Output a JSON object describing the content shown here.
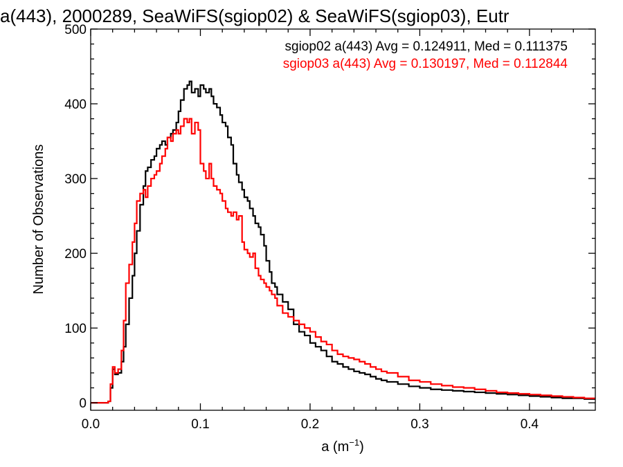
{
  "chart_data": {
    "type": "line",
    "title": "a(443), 2000289, SeaWiFS(sgiop02) & SeaWiFS(sgiop03), Eutr",
    "xlabel_base": "a (m",
    "xlabel_sup": "−1",
    "xlabel_end": ")",
    "ylabel": "Number of Observations",
    "xlim": [
      0.0,
      0.46
    ],
    "ylim": [
      -10,
      500
    ],
    "xticks": [
      "0.0",
      "0.1",
      "0.2",
      "0.3",
      "0.4"
    ],
    "yticks": [
      "0",
      "100",
      "200",
      "300",
      "400",
      "500"
    ],
    "grid": false,
    "legend_placement": "top-right",
    "x": [
      0.0,
      0.01,
      0.016,
      0.018,
      0.02,
      0.022,
      0.025,
      0.028,
      0.03,
      0.032,
      0.035,
      0.038,
      0.04,
      0.042,
      0.045,
      0.048,
      0.05,
      0.052,
      0.055,
      0.058,
      0.06,
      0.063,
      0.065,
      0.068,
      0.07,
      0.073,
      0.075,
      0.078,
      0.08,
      0.082,
      0.085,
      0.088,
      0.09,
      0.092,
      0.095,
      0.098,
      0.1,
      0.103,
      0.105,
      0.108,
      0.11,
      0.112,
      0.115,
      0.118,
      0.12,
      0.123,
      0.125,
      0.128,
      0.13,
      0.133,
      0.135,
      0.138,
      0.14,
      0.143,
      0.145,
      0.148,
      0.15,
      0.153,
      0.155,
      0.158,
      0.16,
      0.163,
      0.165,
      0.168,
      0.17,
      0.175,
      0.18,
      0.185,
      0.19,
      0.195,
      0.2,
      0.205,
      0.21,
      0.215,
      0.22,
      0.225,
      0.23,
      0.235,
      0.24,
      0.245,
      0.25,
      0.255,
      0.26,
      0.265,
      0.27,
      0.28,
      0.29,
      0.3,
      0.31,
      0.32,
      0.33,
      0.34,
      0.35,
      0.36,
      0.37,
      0.38,
      0.39,
      0.4,
      0.41,
      0.42,
      0.43,
      0.44,
      0.45,
      0.46
    ],
    "series": [
      {
        "name": "sgiop02 a(443) Avg = 0.124911, Med = 0.111375",
        "color": "#000000",
        "values": [
          0,
          0,
          2,
          20,
          45,
          38,
          40,
          55,
          75,
          105,
          140,
          170,
          200,
          230,
          265,
          290,
          310,
          315,
          325,
          330,
          340,
          345,
          350,
          345,
          355,
          360,
          365,
          375,
          390,
          405,
          420,
          425,
          430,
          415,
          420,
          410,
          425,
          420,
          415,
          420,
          410,
          400,
          395,
          385,
          375,
          370,
          355,
          345,
          320,
          305,
          295,
          285,
          275,
          270,
          260,
          250,
          240,
          235,
          225,
          210,
          190,
          175,
          160,
          155,
          145,
          135,
          125,
          105,
          95,
          90,
          80,
          75,
          70,
          62,
          55,
          52,
          48,
          45,
          42,
          40,
          38,
          35,
          32,
          30,
          28,
          25,
          22,
          20,
          18,
          17,
          16,
          15,
          14,
          13,
          12,
          11,
          10,
          9,
          8,
          7,
          6,
          6,
          5,
          5
        ]
      },
      {
        "name": "sgiop03 a(443) Avg = 0.130197, Med = 0.112844",
        "color": "#ff0000",
        "values": [
          0,
          0,
          2,
          25,
          48,
          40,
          45,
          70,
          110,
          160,
          185,
          215,
          240,
          270,
          280,
          285,
          275,
          290,
          300,
          305,
          310,
          320,
          330,
          340,
          355,
          350,
          360,
          365,
          360,
          370,
          380,
          375,
          380,
          360,
          375,
          365,
          320,
          310,
          300,
          320,
          300,
          290,
          285,
          280,
          270,
          260,
          255,
          250,
          255,
          245,
          250,
          215,
          205,
          200,
          195,
          200,
          180,
          170,
          165,
          160,
          155,
          150,
          145,
          140,
          130,
          120,
          115,
          110,
          105,
          100,
          95,
          88,
          82,
          78,
          70,
          65,
          62,
          60,
          58,
          55,
          52,
          48,
          45,
          42,
          40,
          35,
          30,
          28,
          25,
          23,
          21,
          20,
          18,
          16,
          14,
          13,
          12,
          11,
          10,
          9,
          8,
          7,
          6,
          6
        ]
      }
    ]
  }
}
